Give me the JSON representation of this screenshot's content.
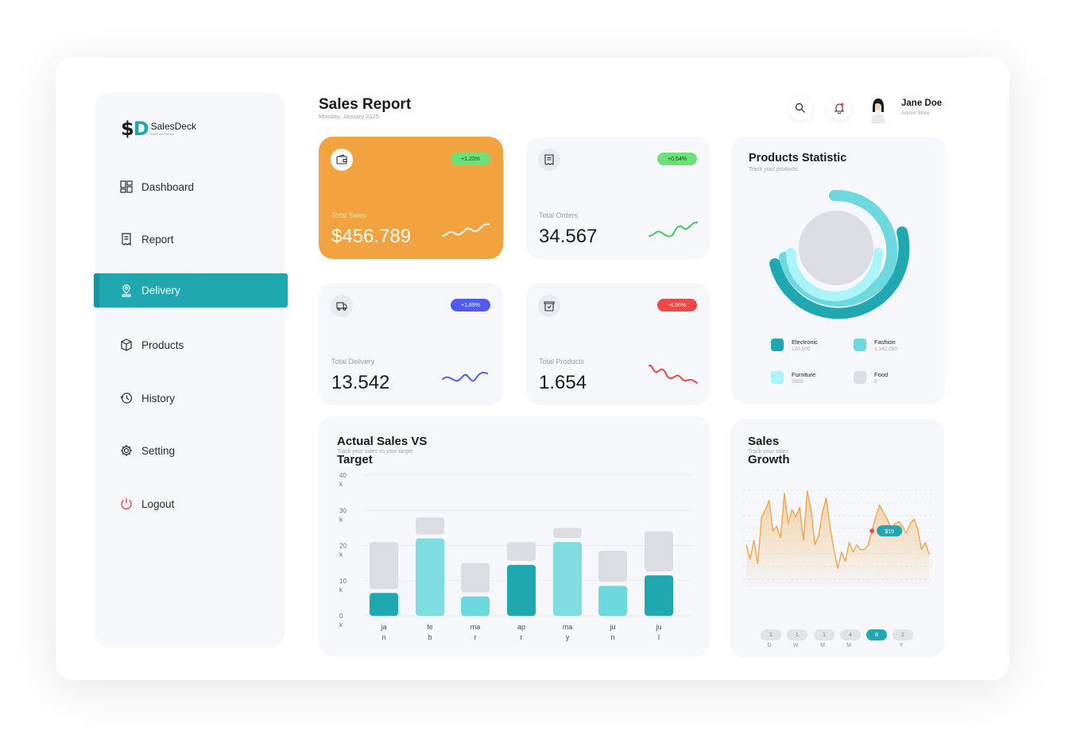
{
  "brand": {
    "mark_s": "$",
    "mark_d": "D",
    "name": "SalesDeck",
    "tagline": "sales dashboard"
  },
  "colors": {
    "accent": "#1fa8b0",
    "orange": "#f2a33f",
    "green_badge": "#6ee07a",
    "blue_badge": "#4f5bf2",
    "red_badge": "#f04848"
  },
  "sidebar": {
    "items": [
      {
        "label": "Dashboard",
        "icon": "dashboard-icon"
      },
      {
        "label": "Report",
        "icon": "report-icon"
      },
      {
        "label": "Delivery",
        "icon": "location-pin-icon",
        "active": true
      },
      {
        "label": "Products",
        "icon": "box-icon"
      },
      {
        "label": "History",
        "icon": "history-icon"
      },
      {
        "label": "Setting",
        "icon": "gear-icon"
      },
      {
        "label": "Logout",
        "icon": "power-icon"
      }
    ]
  },
  "header": {
    "title": "Sales Report",
    "date": "Monday, January 2025"
  },
  "user": {
    "name": "Jane Doe",
    "role": "Admin Store"
  },
  "stats": [
    {
      "label": "Total Sales",
      "value": "$456.789",
      "badge": "+1,23%",
      "icon": "wallet-icon"
    },
    {
      "label": "Total Orders",
      "value": "34.567",
      "badge": "+0,54%",
      "icon": "receipt-icon"
    },
    {
      "label": "Total Delivery",
      "value": "13.542",
      "badge": "+1,89%",
      "icon": "truck-icon"
    },
    {
      "label": "Total Products",
      "value": "1.654",
      "badge": "-4,56%",
      "icon": "package-icon"
    }
  ],
  "products_statistic": {
    "title": "Products Statistic",
    "subtitle": "Track your products",
    "legend": [
      {
        "name": "Electronic",
        "value": "120.500",
        "color": "#1fa8b0"
      },
      {
        "name": "Fashion",
        "value": "1.342.050",
        "color": "#6dd8de"
      },
      {
        "name": "Furniture",
        "value": "2002",
        "color": "#a9f4f8"
      },
      {
        "name": "Food",
        "value": "0",
        "color": "#dcdde3"
      }
    ]
  },
  "actual_vs_target": {
    "title": "Actual Sales VS Target",
    "subtitle": "Track your sales vs your target",
    "y_ticks": [
      {
        "l1": "40",
        "l2": "k",
        "v": 40
      },
      {
        "l1": "30",
        "l2": "k",
        "v": 30
      },
      {
        "l1": "20",
        "l2": "k",
        "v": 20
      },
      {
        "l1": "10",
        "l2": "k",
        "v": 10
      },
      {
        "l1": "0",
        "l2": "k",
        "v": 0
      }
    ],
    "x_labels": [
      {
        "l1": "ja",
        "l2": "n"
      },
      {
        "l1": "fe",
        "l2": "b"
      },
      {
        "l1": "ma",
        "l2": "r"
      },
      {
        "l1": "ap",
        "l2": "r"
      },
      {
        "l1": "ma",
        "l2": "y"
      },
      {
        "l1": "ju",
        "l2": "n"
      },
      {
        "l1": "ju",
        "l2": "l"
      }
    ]
  },
  "sales_growth": {
    "title": "Sales Growth",
    "subtitle": "Track your sales",
    "tooltip": "$15",
    "ranges": [
      {
        "count": "1",
        "label": "D"
      },
      {
        "count": "1",
        "label": "W"
      },
      {
        "count": "1",
        "label": "M"
      },
      {
        "count": "4",
        "label": "M"
      },
      {
        "count": "8",
        "label": "",
        "active": true
      },
      {
        "count": "1",
        "label": "Y"
      }
    ]
  },
  "chart_data": [
    {
      "type": "bar",
      "title": "Actual Sales VS Target",
      "categories": [
        "jan",
        "feb",
        "mar",
        "apr",
        "may",
        "jun",
        "jul"
      ],
      "series": [
        {
          "name": "",
          "values": [
            6.5,
            22,
            5.5,
            14.5,
            21,
            8.5,
            11.5
          ]
        },
        {
          "name": "",
          "values": [
            21,
            28,
            15,
            21,
            25,
            18.5,
            24
          ]
        }
      ],
      "ylim": [
        0,
        40
      ],
      "grid": true
    },
    {
      "type": "area",
      "title": "Sales Growth",
      "y": [
        9,
        6,
        10,
        5,
        15,
        16.5,
        18.5,
        12,
        13,
        10.5,
        20,
        13.5,
        16.5,
        15,
        17,
        10,
        20.5,
        16.5,
        9,
        11,
        16,
        19,
        13,
        8,
        4,
        7.5,
        5.5,
        9.5,
        7.5,
        9,
        8,
        8,
        9,
        12,
        15,
        17.5,
        16,
        14.5,
        12.5,
        13.5,
        14,
        13,
        11.5,
        13.5,
        14.5,
        12.5,
        8,
        9.5,
        7
      ],
      "highlight_value": 15,
      "ylim": [
        0,
        22
      ],
      "grid": true
    },
    {
      "type": "pie",
      "title": "Products Statistic",
      "categories": [
        "Electronic",
        "Fashion",
        "Furniture",
        "Food"
      ],
      "values": [
        120500,
        1342050,
        2002,
        0
      ]
    }
  ]
}
